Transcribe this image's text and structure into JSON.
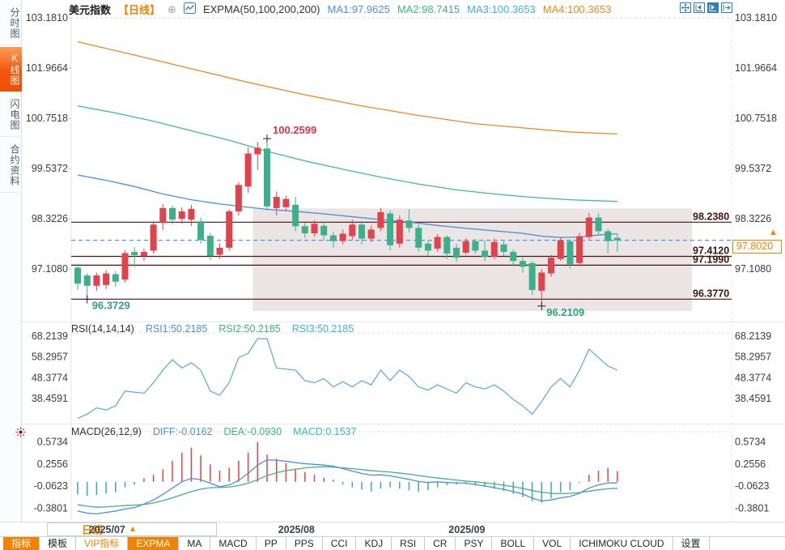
{
  "header": {
    "symbol": "美元指数",
    "period_tag": "【日线】",
    "indicator_label": "EXPMA(50,100,200,200)",
    "ma1_label": "MA1:97.9625",
    "ma2_label": "MA2:98.7415",
    "ma3_label": "MA3:100.3653",
    "ma4_label": "MA4:100.3653"
  },
  "sidebar": {
    "items": [
      {
        "label": "分时图",
        "active": false
      },
      {
        "label": "K线图",
        "active": true
      },
      {
        "label": "闪电图",
        "active": false
      },
      {
        "label": "合约资料",
        "active": false
      }
    ]
  },
  "period_selector": {
    "label": "日线",
    "arrow": "▲"
  },
  "date_axis": {
    "labels": [
      {
        "text": "2025/07",
        "index": 1
      },
      {
        "text": "2025/08",
        "index": 21
      },
      {
        "text": "2025/09",
        "index": 39
      }
    ]
  },
  "toolbar": {
    "items": [
      {
        "label": "指标",
        "style": "hot"
      },
      {
        "label": "模板",
        "style": "plain"
      },
      {
        "label": "VIP指标",
        "style": "vip"
      },
      {
        "label": "EXPMA",
        "style": "hot"
      },
      {
        "label": "MA",
        "style": "plain"
      },
      {
        "label": "MACD",
        "style": "plain"
      },
      {
        "label": "PP",
        "style": "plain"
      },
      {
        "label": "PPS",
        "style": "plain"
      },
      {
        "label": "CCI",
        "style": "plain"
      },
      {
        "label": "KDJ",
        "style": "plain"
      },
      {
        "label": "RSI",
        "style": "plain"
      },
      {
        "label": "CR",
        "style": "plain"
      },
      {
        "label": "PSY",
        "style": "plain"
      },
      {
        "label": "BOLL",
        "style": "plain"
      },
      {
        "label": "VOL",
        "style": "plain"
      },
      {
        "label": "ICHIMOKU CLOUD",
        "style": "plain"
      },
      {
        "label": "设置",
        "style": "plain"
      }
    ]
  },
  "colors": {
    "up": "#e2434b",
    "down": "#3cb08a",
    "ma1": "#4a8fdc",
    "ma2": "#3fbb96",
    "ma4": "#ee8822",
    "rsi_line": "#54aadc",
    "diff": "#4a8fdc",
    "dea": "#3db584",
    "level_line": "#4a1412",
    "level_text": "#3d1410",
    "dashed_price": "#3f8ef0",
    "accent_orange": "#f08300",
    "annotation_red": "#e23348",
    "annotation_green": "#2fa083",
    "zone_fill": "rgba(183,162,162,0.28)",
    "axis_text": "#3c3c3c"
  },
  "chart_data": {
    "type": "candlestick",
    "title": "美元指数 日线 (US Dollar Index, daily)",
    "main": {
      "axis_labels": [
        "103.1810",
        "101.9664",
        "100.7518",
        "99.5372",
        "98.3226",
        "97.1080"
      ],
      "level_lines": [
        "98.2380",
        "97.4120",
        "97.1990",
        "96.3770"
      ],
      "current_price_label": "97.8020",
      "current_price": 97.802,
      "high_annotation": {
        "index": 20,
        "price": 100.2599,
        "text": "100.2599"
      },
      "low_annotations": [
        {
          "index": 1,
          "price": 96.3729,
          "text": "96.3729"
        },
        {
          "index": 49,
          "price": 96.2109,
          "text": "96.2109"
        }
      ],
      "highlight_zone": {
        "from_index": 19,
        "price_top": 98.57,
        "price_bottom": 96.09
      },
      "candles_ohlc": [
        [
          97.14,
          97.24,
          96.6,
          96.75
        ],
        [
          96.95,
          97.0,
          96.3729,
          96.7
        ],
        [
          96.7,
          97.02,
          96.58,
          96.95
        ],
        [
          96.72,
          97.08,
          96.62,
          97.0
        ],
        [
          96.98,
          97.06,
          96.68,
          96.8
        ],
        [
          96.85,
          97.56,
          96.78,
          97.49
        ],
        [
          97.52,
          97.63,
          97.15,
          97.44
        ],
        [
          97.42,
          97.6,
          97.3,
          97.52
        ],
        [
          97.55,
          98.26,
          97.48,
          98.18
        ],
        [
          98.22,
          98.68,
          98.05,
          98.58
        ],
        [
          98.58,
          98.64,
          98.18,
          98.3
        ],
        [
          98.32,
          98.6,
          98.2,
          98.5
        ],
        [
          98.3,
          98.66,
          98.15,
          98.56
        ],
        [
          98.26,
          98.35,
          97.72,
          97.81
        ],
        [
          97.91,
          97.98,
          97.32,
          97.42
        ],
        [
          97.45,
          97.72,
          97.35,
          97.62
        ],
        [
          97.62,
          98.55,
          97.55,
          98.5
        ],
        [
          98.5,
          99.2,
          98.4,
          99.14
        ],
        [
          99.1,
          100.05,
          98.95,
          99.9
        ],
        [
          99.88,
          100.18,
          99.5,
          100.04
        ],
        [
          100.02,
          100.2599,
          98.52,
          98.62
        ],
        [
          98.58,
          98.98,
          98.4,
          98.85
        ],
        [
          98.6,
          98.88,
          98.5,
          98.8
        ],
        [
          98.66,
          98.85,
          98.02,
          98.14
        ],
        [
          98.14,
          98.22,
          97.86,
          97.97
        ],
        [
          97.97,
          98.28,
          97.9,
          98.2
        ],
        [
          98.15,
          98.26,
          97.8,
          97.92
        ],
        [
          97.92,
          98.0,
          97.62,
          97.78
        ],
        [
          97.78,
          98.06,
          97.7,
          97.96
        ],
        [
          97.9,
          98.3,
          97.8,
          98.18
        ],
        [
          98.18,
          98.24,
          97.7,
          97.84
        ],
        [
          97.84,
          98.16,
          97.76,
          98.06
        ],
        [
          98.1,
          98.58,
          98.02,
          98.48
        ],
        [
          98.45,
          98.52,
          97.56,
          97.68
        ],
        [
          97.72,
          98.4,
          97.62,
          98.3
        ],
        [
          98.28,
          98.55,
          98.0,
          98.1
        ],
        [
          98.1,
          98.18,
          97.52,
          97.62
        ],
        [
          97.72,
          97.8,
          97.42,
          97.55
        ],
        [
          97.6,
          97.95,
          97.52,
          97.88
        ],
        [
          97.88,
          97.92,
          97.35,
          97.48
        ],
        [
          97.62,
          97.72,
          97.28,
          97.38
        ],
        [
          97.5,
          97.85,
          97.45,
          97.78
        ],
        [
          97.78,
          97.84,
          97.48,
          97.55
        ],
        [
          97.55,
          97.8,
          97.3,
          97.4
        ],
        [
          97.4,
          97.84,
          97.35,
          97.76
        ],
        [
          97.7,
          97.78,
          97.42,
          97.52
        ],
        [
          97.52,
          97.58,
          97.18,
          97.3
        ],
        [
          97.3,
          97.38,
          97.02,
          97.16
        ],
        [
          97.25,
          97.3,
          96.48,
          96.6
        ],
        [
          96.58,
          97.1,
          96.2109,
          97.02
        ],
        [
          97.0,
          97.45,
          96.92,
          97.38
        ],
        [
          97.35,
          97.88,
          97.3,
          97.8
        ],
        [
          97.78,
          97.82,
          97.12,
          97.22
        ],
        [
          97.25,
          97.98,
          97.18,
          97.9
        ],
        [
          97.88,
          98.46,
          97.82,
          98.35
        ],
        [
          98.35,
          98.45,
          97.95,
          98.02
        ],
        [
          98.02,
          98.08,
          97.48,
          97.78
        ],
        [
          97.86,
          97.95,
          97.52,
          97.802
        ]
      ],
      "ma_lines": {
        "ma1": [
          [
            0,
            99.38
          ],
          [
            3,
            99.25
          ],
          [
            6,
            99.1
          ],
          [
            9,
            98.92
          ],
          [
            12,
            98.78
          ],
          [
            15,
            98.68
          ],
          [
            18,
            98.6
          ],
          [
            20,
            98.55
          ],
          [
            23,
            98.5
          ],
          [
            26,
            98.44
          ],
          [
            29,
            98.37
          ],
          [
            32,
            98.3
          ],
          [
            35,
            98.24
          ],
          [
            38,
            98.16
          ],
          [
            41,
            98.09
          ],
          [
            44,
            98.03
          ],
          [
            47,
            97.97
          ],
          [
            49,
            97.9
          ],
          [
            51,
            97.87
          ],
          [
            53,
            97.88
          ],
          [
            55,
            97.93
          ],
          [
            57,
            97.96
          ]
        ],
        "ma2": [
          [
            0,
            101.05
          ],
          [
            4,
            100.88
          ],
          [
            8,
            100.68
          ],
          [
            12,
            100.45
          ],
          [
            16,
            100.22
          ],
          [
            20,
            99.95
          ],
          [
            24,
            99.72
          ],
          [
            28,
            99.52
          ],
          [
            32,
            99.33
          ],
          [
            36,
            99.16
          ],
          [
            40,
            99.02
          ],
          [
            44,
            98.92
          ],
          [
            48,
            98.84
          ],
          [
            52,
            98.78
          ],
          [
            57,
            98.74
          ]
        ],
        "ma4": [
          [
            0,
            102.6
          ],
          [
            6,
            102.28
          ],
          [
            12,
            101.95
          ],
          [
            18,
            101.62
          ],
          [
            24,
            101.32
          ],
          [
            30,
            101.05
          ],
          [
            36,
            100.82
          ],
          [
            42,
            100.62
          ],
          [
            48,
            100.5
          ],
          [
            52,
            100.42
          ],
          [
            57,
            100.37
          ]
        ]
      }
    },
    "rsi": {
      "params": "RSI(14,14,14)",
      "rsi1_label": "RSI1:50.2185",
      "rsi2_label": "RSI2:50.2185",
      "rsi3_label": "RSI3:50.2185",
      "axis_labels": [
        "68.2139",
        "58.2957",
        "48.3774",
        "38.4591"
      ],
      "values": [
        29,
        31,
        34,
        33,
        35,
        42,
        41.5,
        41,
        46,
        52,
        57,
        53,
        55.5,
        52,
        42,
        40,
        46,
        58,
        60,
        67,
        67,
        53,
        52.5,
        52,
        47,
        46,
        48,
        44,
        46.5,
        44,
        47,
        45,
        52,
        47,
        52,
        49,
        44,
        42.5,
        45,
        43,
        41,
        46,
        44,
        43,
        45,
        42,
        38,
        35,
        31,
        37,
        44,
        48,
        44,
        52,
        62,
        58,
        54,
        52
      ]
    },
    "macd": {
      "params": "MACD(26,12,9)",
      "diff_label": "DIFF:-0.0162",
      "dea_label": "DEA:-0.0930",
      "macd_label": "MACD:0.1537",
      "axis_labels": [
        "0.5734",
        "0.2556",
        "-0.0623",
        "-0.3801"
      ],
      "hist": [
        -0.18,
        -0.2,
        -0.19,
        -0.17,
        -0.15,
        -0.08,
        -0.04,
        0.05,
        0.1,
        0.18,
        0.3,
        0.42,
        0.49,
        0.38,
        0.25,
        0.16,
        0.2,
        0.3,
        0.42,
        0.57,
        0.39,
        0.33,
        0.27,
        0.19,
        0.14,
        0.1,
        0.06,
        0.03,
        -0.04,
        -0.08,
        -0.11,
        -0.14,
        -0.1,
        -0.08,
        -0.1,
        -0.12,
        -0.14,
        -0.12,
        -0.08,
        -0.05,
        -0.04,
        -0.03,
        -0.05,
        -0.07,
        -0.1,
        -0.13,
        -0.17,
        -0.22,
        -0.28,
        -0.3,
        -0.24,
        -0.15,
        -0.12,
        -0.02,
        0.1,
        0.16,
        0.2,
        0.1537
      ],
      "diff": [
        -0.42,
        -0.45,
        -0.46,
        -0.44,
        -0.42,
        -0.39,
        -0.37,
        -0.32,
        -0.26,
        -0.18,
        -0.09,
        0.0,
        0.05,
        0.03,
        -0.02,
        -0.07,
        -0.045,
        0.02,
        0.12,
        0.24,
        0.315,
        0.31,
        0.295,
        0.275,
        0.26,
        0.25,
        0.24,
        0.225,
        0.19,
        0.155,
        0.12,
        0.095,
        0.1,
        0.085,
        0.06,
        0.035,
        0.005,
        -0.01,
        0.0,
        -0.01,
        -0.015,
        -0.02,
        -0.04,
        -0.06,
        -0.085,
        -0.11,
        -0.14,
        -0.175,
        -0.235,
        -0.275,
        -0.26,
        -0.23,
        -0.21,
        -0.165,
        -0.09,
        -0.045,
        -0.015,
        -0.0162
      ],
      "dea": [
        -0.33,
        -0.35,
        -0.365,
        -0.36,
        -0.35,
        -0.34,
        -0.335,
        -0.325,
        -0.305,
        -0.27,
        -0.23,
        -0.185,
        -0.14,
        -0.105,
        -0.085,
        -0.08,
        -0.075,
        -0.055,
        -0.02,
        0.03,
        0.09,
        0.13,
        0.16,
        0.18,
        0.2,
        0.21,
        0.215,
        0.21,
        0.2,
        0.19,
        0.175,
        0.16,
        0.15,
        0.14,
        0.125,
        0.11,
        0.09,
        0.07,
        0.055,
        0.04,
        0.025,
        0.01,
        0.0,
        -0.015,
        -0.03,
        -0.05,
        -0.07,
        -0.095,
        -0.125,
        -0.15,
        -0.165,
        -0.17,
        -0.165,
        -0.155,
        -0.135,
        -0.115,
        -0.1,
        -0.093
      ]
    }
  }
}
